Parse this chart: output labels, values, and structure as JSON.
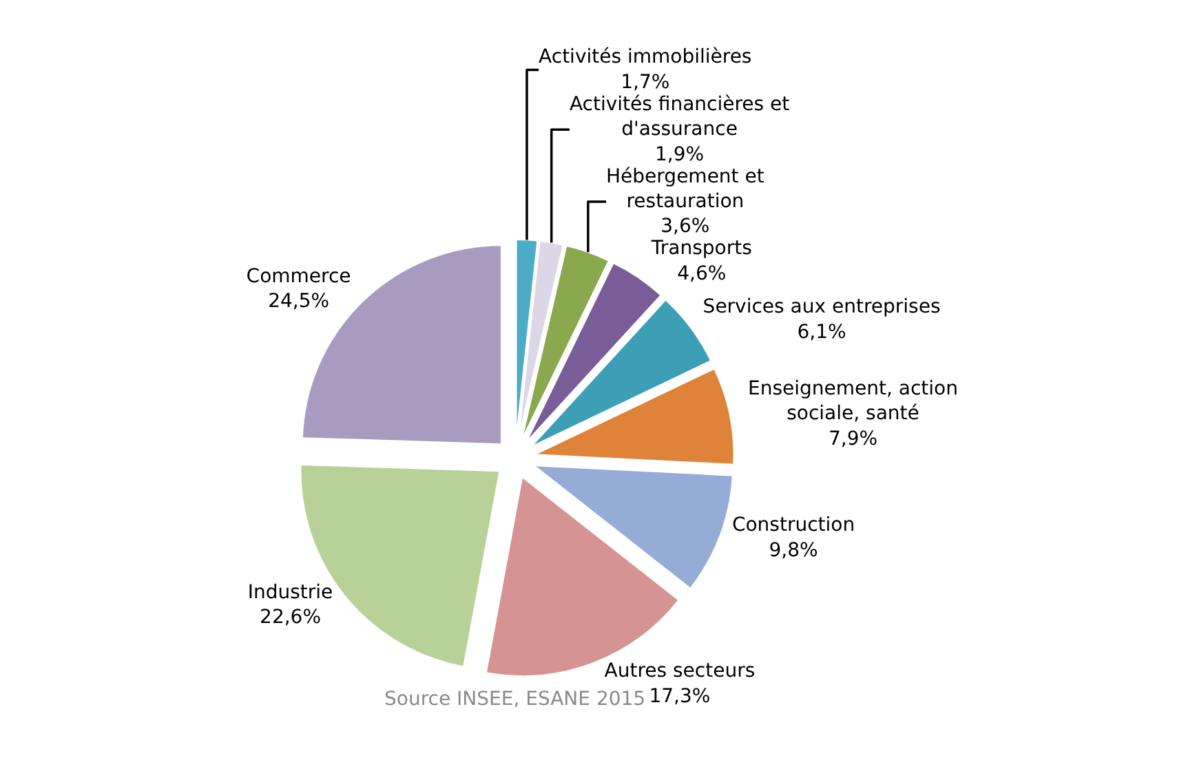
{
  "chart_data": {
    "type": "pie",
    "categories": [
      "Activités immobilières",
      "Activités financières et d'assurance",
      "Hébergement et restauration",
      "Transports",
      "Services aux entreprises",
      "Enseignement, action sociale, santé",
      "Construction",
      "Autres secteurs",
      "Industrie",
      "Commerce"
    ],
    "values": [
      1.7,
      1.9,
      3.6,
      4.6,
      6.1,
      7.9,
      9.8,
      17.3,
      22.6,
      24.5
    ],
    "value_labels": [
      "1,7%",
      "1,9%",
      "3,6%",
      "4,6%",
      "6,1%",
      "7,9%",
      "9,8%",
      "17,3%",
      "22,6%",
      "24,5%"
    ],
    "colors": [
      "#4bacc6",
      "#dcd7e8",
      "#8aa84e",
      "#7a5c98",
      "#3c9fb5",
      "#e0833a",
      "#95add6",
      "#d59391",
      "#b8d198",
      "#a99bc0"
    ],
    "legend": false,
    "annotations": [
      "Source INSEE, ESANE 2015"
    ]
  }
}
